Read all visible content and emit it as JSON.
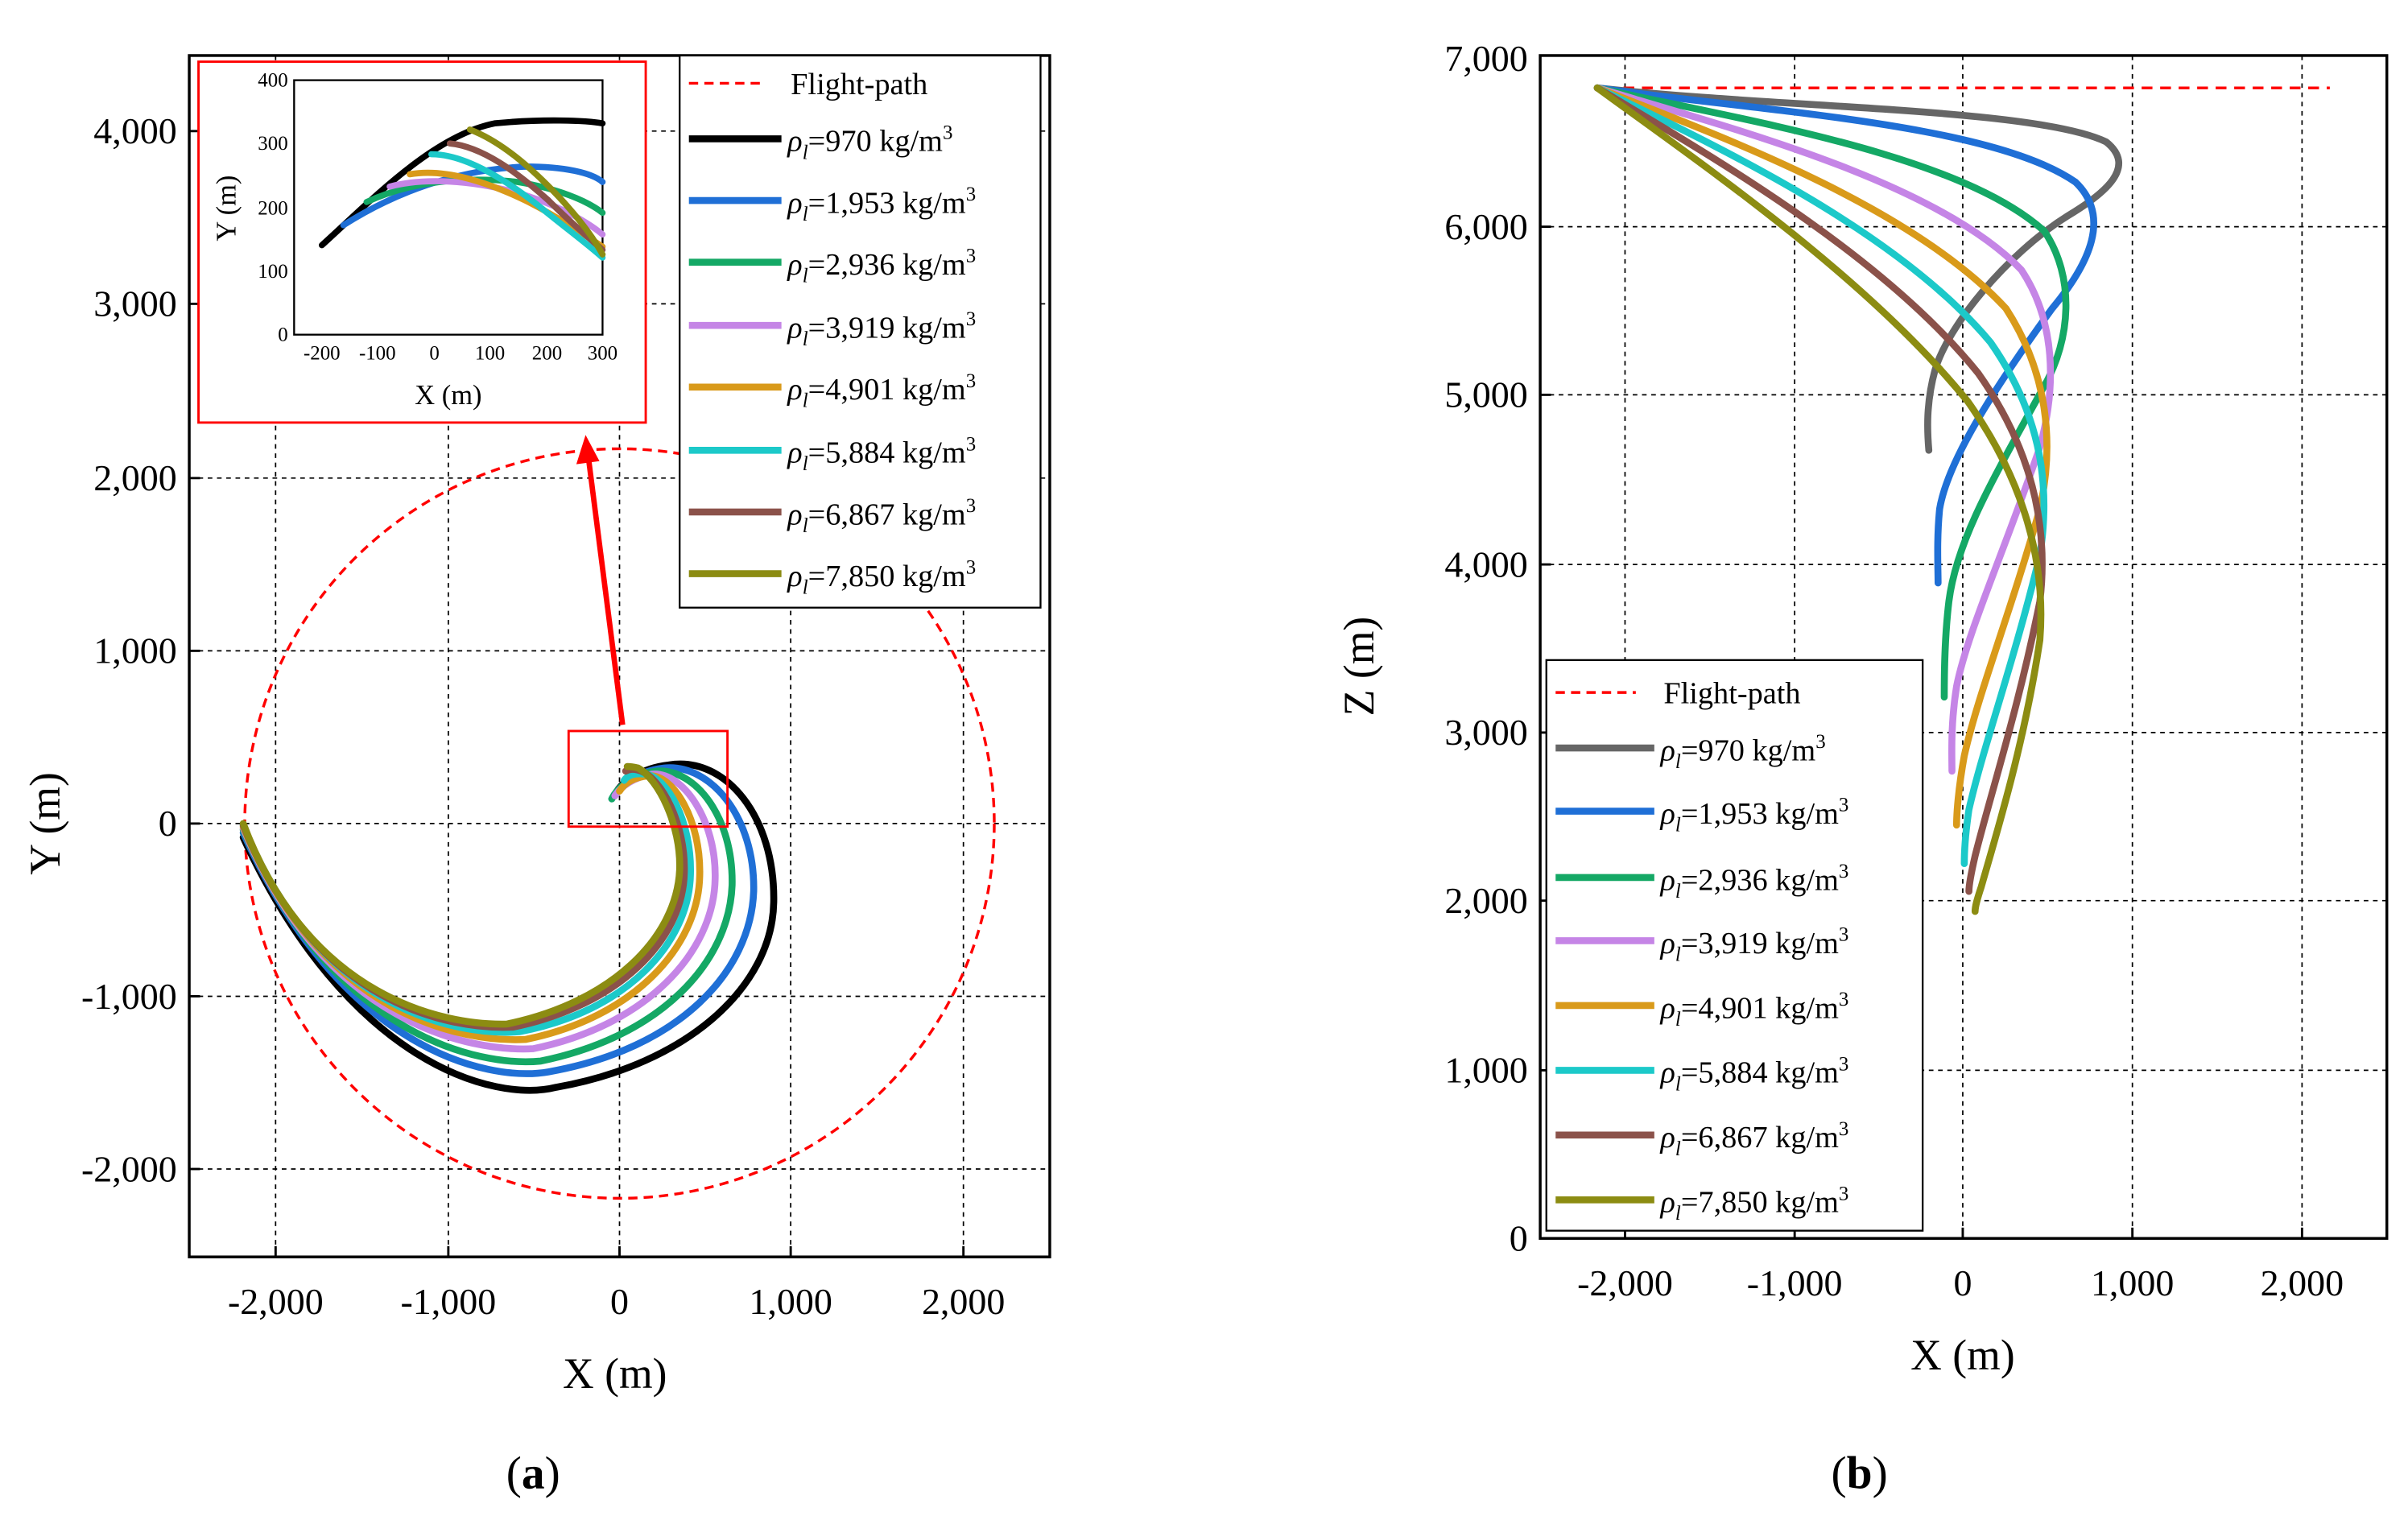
{
  "colors": {
    "flight": "#ff0000",
    "s970a": "#000000",
    "s970b": "#666666",
    "s1953": "#1f6fd6",
    "s2936": "#14a865",
    "s3919": "#c585e6",
    "s4901": "#d99a1a",
    "s5884": "#1cc9c9",
    "s6867": "#8b524a",
    "s7850": "#8c8c12",
    "zoomBox": "#ff0000",
    "arrow": "#ff0000"
  },
  "legend": {
    "flight_label": "Flight-path",
    "rho_symbol": "ρ",
    "rho_sub": "l",
    "unit": "kg/m",
    "unit_sup": "3",
    "entries": [
      {
        "value": "970",
        "key": "s970"
      },
      {
        "value": "1,953",
        "key": "s1953"
      },
      {
        "value": "2,936",
        "key": "s2936"
      },
      {
        "value": "3,919",
        "key": "s3919"
      },
      {
        "value": "4,901",
        "key": "s4901"
      },
      {
        "value": "5,884",
        "key": "s5884"
      },
      {
        "value": "6,867",
        "key": "s6867"
      },
      {
        "value": "7,850",
        "key": "s7850"
      }
    ]
  },
  "panels": {
    "a": {
      "label": "(a)"
    },
    "b": {
      "label": "(b)"
    }
  },
  "chart_data": [
    {
      "id": "a",
      "type": "line",
      "title": "",
      "xlabel": "X (m)",
      "ylabel": "Y (m)",
      "xlim": [
        -2500,
        2500
      ],
      "ylim": [
        -2500,
        4500
      ],
      "xticks": [
        -2000,
        -1000,
        0,
        1000,
        2000
      ],
      "yticks": [
        -2000,
        -1000,
        0,
        1000,
        2000,
        3000,
        4000
      ],
      "xtick_labels": [
        "-2,000",
        "-1,000",
        "0",
        "1,000",
        "2,000"
      ],
      "ytick_labels": [
        "-2,000",
        "-1,000",
        "0",
        "1,000",
        "2,000",
        "3,000",
        "4,000"
      ],
      "grid": true,
      "legend_position": "top-right",
      "flight_path": {
        "type": "circle",
        "center": [
          0,
          0
        ],
        "radius": 2180
      },
      "zoom_region": {
        "x": [
          -300,
          630
        ],
        "y": [
          -10,
          540
        ]
      },
      "series": [
        {
          "name": "ρl=970 kg/m3",
          "key": "s970",
          "end_x": 900,
          "bottom_y": -1510
        },
        {
          "name": "ρl=1,953 kg/m3",
          "key": "s1953",
          "end_x": 780,
          "bottom_y": -1470
        },
        {
          "name": "ρl=2,936 kg/m3",
          "key": "s2936",
          "end_x": 700,
          "bottom_y": -1400
        },
        {
          "name": "ρl=3,919 kg/m3",
          "key": "s3919",
          "end_x": 640,
          "bottom_y": -1340
        },
        {
          "name": "ρl=4,901 kg/m3",
          "key": "s4901",
          "end_x": 590,
          "bottom_y": -1290
        },
        {
          "name": "ρl=5,884 kg/m3",
          "key": "s5884",
          "end_x": 550,
          "bottom_y": -1250
        },
        {
          "name": "ρl=6,867 kg/m3",
          "key": "s6867",
          "end_x": 520,
          "bottom_y": -1220
        },
        {
          "name": "ρl=7,850 kg/m3",
          "key": "s7850",
          "end_x": 500,
          "bottom_y": -1200
        }
      ]
    },
    {
      "id": "a-inset",
      "type": "line",
      "title": "",
      "xlabel": "X (m)",
      "ylabel": "Y (m)",
      "xlim": [
        -250,
        300
      ],
      "ylim": [
        0,
        400
      ],
      "xticks": [
        -200,
        -100,
        0,
        100,
        200,
        300
      ],
      "yticks": [
        0,
        100,
        200,
        300,
        400
      ],
      "xtick_labels": [
        "-200",
        "-100",
        "0",
        "100",
        "200",
        "300"
      ],
      "ytick_labels": [
        "0",
        "100",
        "200",
        "300",
        "400"
      ],
      "grid": false,
      "series": [
        {
          "key": "s970",
          "start": [
            -200,
            140
          ],
          "peak": [
            250,
            335
          ]
        },
        {
          "key": "s1953",
          "start": [
            -160,
            185
          ],
          "peak": [
            200,
            280
          ]
        },
        {
          "key": "s2936",
          "start": [
            -120,
            210
          ],
          "peak": [
            150,
            265
          ]
        },
        {
          "key": "s3919",
          "start": [
            -80,
            235
          ],
          "peak": [
            100,
            260
          ]
        },
        {
          "key": "s4901",
          "start": [
            -40,
            255
          ],
          "peak": [
            80,
            258
          ]
        },
        {
          "key": "s5884",
          "start": [
            0,
            285
          ],
          "peak": [
            60,
            280
          ]
        },
        {
          "key": "s6867",
          "start": [
            30,
            295
          ],
          "peak": [
            55,
            295
          ]
        },
        {
          "key": "s7850",
          "start": [
            60,
            320
          ],
          "peak": [
            60,
            320
          ]
        }
      ]
    },
    {
      "id": "b",
      "type": "line",
      "title": "",
      "xlabel": "X (m)",
      "ylabel": "Z (m)",
      "xlim": [
        -2500,
        2500
      ],
      "ylim": [
        0,
        7000
      ],
      "xticks": [
        -2000,
        -1000,
        0,
        1000,
        2000
      ],
      "yticks": [
        0,
        1000,
        2000,
        3000,
        4000,
        5000,
        6000,
        7000
      ],
      "xtick_labels": [
        "-2,000",
        "-1,000",
        "0",
        "1,000",
        "2,000"
      ],
      "ytick_labels": [
        "0",
        "1,000",
        "2,000",
        "3,000",
        "4,000",
        "5,000",
        "6,000",
        "7,000"
      ],
      "grid": true,
      "legend_position": "bottom-left",
      "flight_path": {
        "type": "line",
        "x": [
          -2200,
          2200
        ],
        "z": [
          6830,
          6830
        ]
      },
      "series": [
        {
          "name": "ρl=970 kg/m3",
          "key": "s970",
          "max_x": 880,
          "end": [
            -230,
            4700
          ]
        },
        {
          "name": "ρl=1,953 kg/m3",
          "key": "s1953",
          "max_x": 750,
          "end": [
            -130,
            3900
          ]
        },
        {
          "name": "ρl=2,936 kg/m3",
          "key": "s2936",
          "max_x": 630,
          "end": [
            -90,
            3220
          ]
        },
        {
          "name": "ρl=3,919 kg/m3",
          "key": "s3919",
          "max_x": 560,
          "end": [
            -60,
            2760
          ]
        },
        {
          "name": "ρl=4,901 kg/m3",
          "key": "s4901",
          "max_x": 530,
          "end": [
            -30,
            2460
          ]
        },
        {
          "name": "ρl=5,884 kg/m3",
          "key": "s5884",
          "max_x": 510,
          "end": [
            0,
            2230
          ]
        },
        {
          "name": "ρl=6,867 kg/m3",
          "key": "s6867",
          "max_x": 500,
          "end": [
            20,
            2080
          ]
        },
        {
          "name": "ρl=7,850 kg/m3",
          "key": "s7850",
          "max_x": 490,
          "end": [
            50,
            1970
          ]
        }
      ]
    }
  ]
}
